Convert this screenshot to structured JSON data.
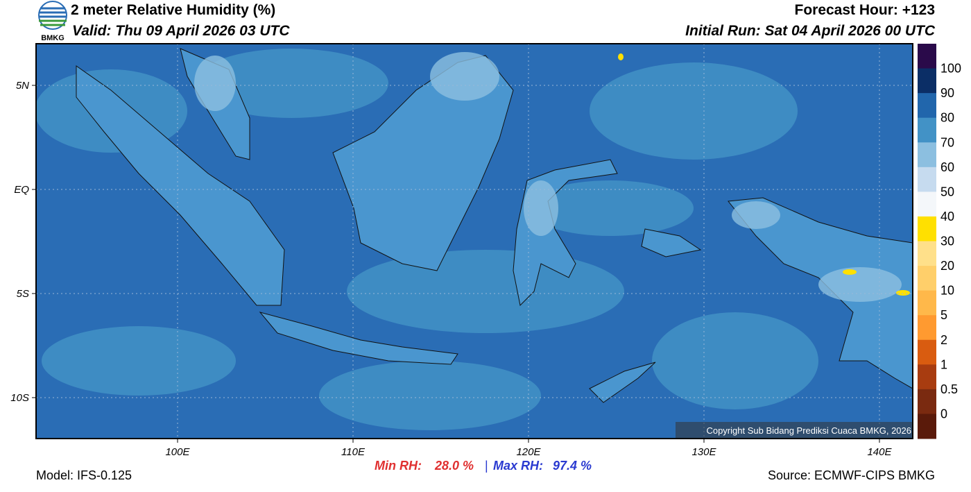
{
  "header": {
    "logo_text": "BMKG",
    "title": "2 meter Relative Humidity (%)",
    "valid": "Valid: Thu 09 April 2026 03 UTC",
    "forecast_hour": "Forecast Hour: +123",
    "initial_run": "Initial Run: Sat 04 April 2026 00 UTC"
  },
  "map": {
    "lat_labels": [
      "5N",
      "EQ",
      "5S",
      "10S"
    ],
    "lon_labels": [
      "100E",
      "110E",
      "120E",
      "130E",
      "140E"
    ],
    "copyright": "Copyright Sub Bidang Prediksi Cuaca BMKG, 2026"
  },
  "colorbar": {
    "labels": [
      "100",
      "90",
      "80",
      "70",
      "60",
      "50",
      "40",
      "30",
      "20",
      "10",
      "5",
      "2",
      "1",
      "0.5",
      "0"
    ],
    "colors": [
      "#2a0a4a",
      "#0b2e66",
      "#2166ac",
      "#4292c6",
      "#8cbfe0",
      "#c6dbef",
      "#f4f7fa",
      "#ffe000",
      "#ffe08a",
      "#ffcf6a",
      "#ffb84a",
      "#ff9a30",
      "#d95c10",
      "#a83c10",
      "#7a2a10",
      "#5a1a0a",
      "#b01010",
      "#e03a30"
    ]
  },
  "footer": {
    "model": "Model: IFS-0.125",
    "min_label": "Min RH:",
    "min_value": "28.0 %",
    "separator": "|",
    "max_label": "Max RH:",
    "max_value": "97.4 %",
    "source": "Source: ECMWF-CIPS BMKG"
  }
}
